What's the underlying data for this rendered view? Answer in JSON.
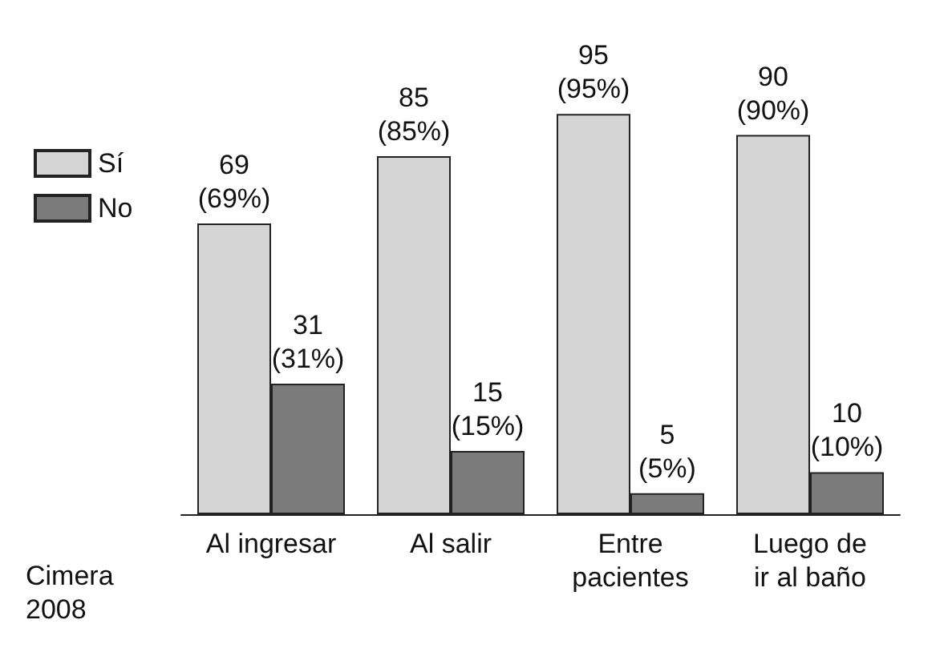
{
  "chart_data": {
    "type": "bar",
    "categories": [
      "Al ingresar",
      "Al salir",
      "Entre\npacientes",
      "Luego de\nir al baño"
    ],
    "series": [
      {
        "name": "Sí",
        "color": "#d4d4d4",
        "values": [
          69,
          85,
          95,
          90
        ],
        "value_labels": [
          "69\n(69%)",
          "85\n(85%)",
          "95\n(95%)",
          "90\n(90%)"
        ]
      },
      {
        "name": "No",
        "color": "#7b7b7b",
        "values": [
          31,
          15,
          5,
          10
        ],
        "value_labels": [
          "31\n(31%)",
          "15\n(15%)",
          "5\n(5%)",
          "10\n(10%)"
        ]
      }
    ],
    "legend": "top left",
    "grid": false,
    "annotations": [
      "Cimera\n2008"
    ]
  }
}
